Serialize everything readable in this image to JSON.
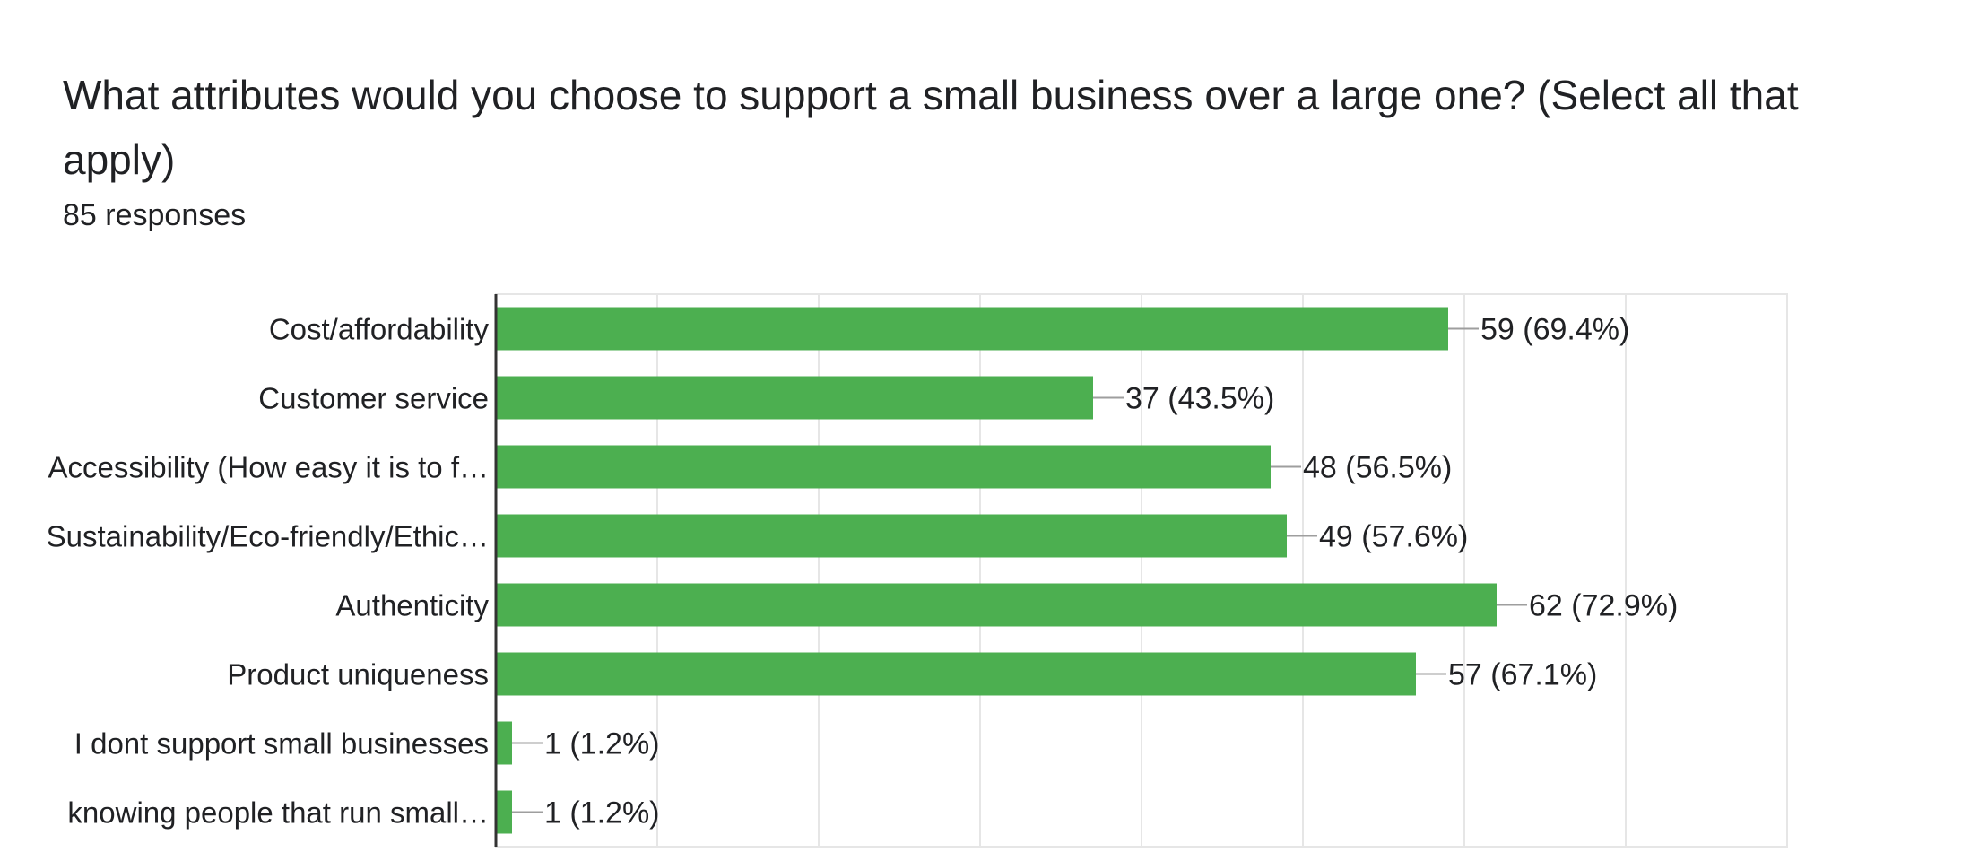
{
  "question": {
    "title": "What attributes would you choose to support a small business over a large one? (Select all that apply)",
    "responses": "85 responses"
  },
  "colors": {
    "bar": "#4caf50",
    "grid": "#e6e6e6",
    "axis": "#333333",
    "leader": "#9e9e9e",
    "text": "#202124"
  },
  "chart_data": {
    "type": "bar",
    "orientation": "horizontal",
    "title": "What attributes would you choose to support a small business over a large one? (Select all that apply)",
    "categories": [
      "Cost/affordability",
      "Customer service",
      "Accessibility (How easy it is to f…",
      "Sustainability/Eco-friendly/Ethic…",
      "Authenticity",
      "Product uniqueness",
      "I dont support small businesses",
      "knowing people that run small…"
    ],
    "values": [
      59,
      37,
      48,
      49,
      62,
      57,
      1,
      1
    ],
    "data_labels": [
      "59 (69.4%)",
      "37 (43.5%)",
      "48 (56.5%)",
      "49 (57.6%)",
      "62 (72.9%)",
      "57 (67.1%)",
      "1 (1.2%)",
      "1 (1.2%)"
    ],
    "xlim": [
      0,
      80
    ],
    "x_gridlines": [
      0,
      10,
      20,
      30,
      40,
      50,
      60,
      70,
      80
    ],
    "grid": true,
    "legend": "none"
  }
}
